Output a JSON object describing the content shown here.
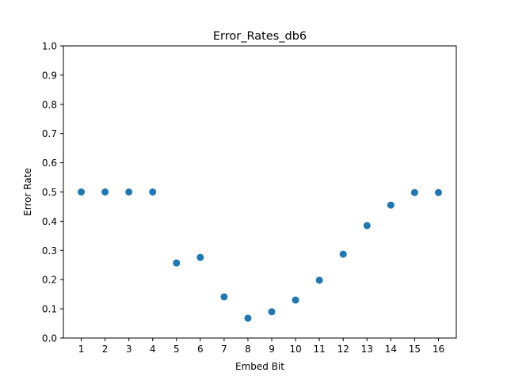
{
  "chart_data": {
    "type": "scatter",
    "title": "Error_Rates_db6",
    "xlabel": "Embed Bit",
    "ylabel": "Error Rate",
    "xlim": [
      0.25,
      16.75
    ],
    "ylim": [
      0.0,
      1.0
    ],
    "x_ticks": [
      "1",
      "2",
      "3",
      "4",
      "5",
      "6",
      "7",
      "8",
      "9",
      "10",
      "11",
      "12",
      "13",
      "14",
      "15",
      "16"
    ],
    "y_ticks": [
      "0.0",
      "0.1",
      "0.2",
      "0.3",
      "0.4",
      "0.5",
      "0.6",
      "0.7",
      "0.8",
      "0.9",
      "1.0"
    ],
    "grid": false,
    "marker_color": "#1f77b4",
    "x": [
      1,
      2,
      3,
      4,
      5,
      6,
      7,
      8,
      9,
      10,
      11,
      12,
      13,
      14,
      15,
      16
    ],
    "y": [
      0.5,
      0.5,
      0.5,
      0.5,
      0.257,
      0.276,
      0.141,
      0.068,
      0.09,
      0.13,
      0.198,
      0.287,
      0.385,
      0.455,
      0.498,
      0.498
    ]
  }
}
